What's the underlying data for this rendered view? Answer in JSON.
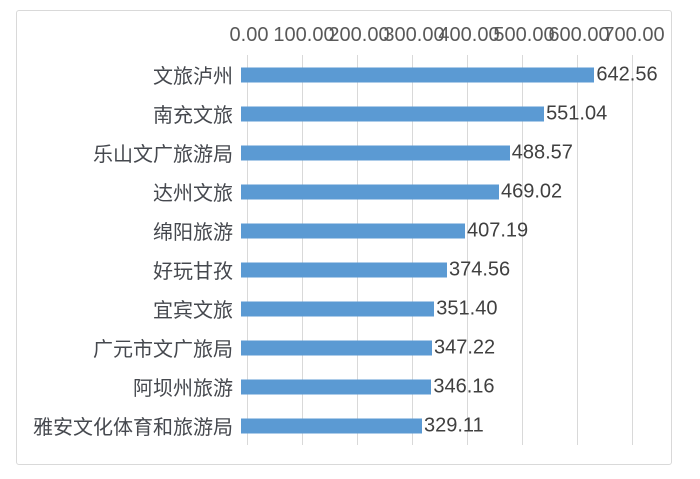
{
  "chart_data": {
    "type": "bar",
    "orientation": "horizontal",
    "title": "",
    "categories": [
      "文旅泸州",
      "南充文旅",
      "乐山文广旅游局",
      "达州文旅",
      "绵阳旅游",
      "好玩甘孜",
      "宜宾文旅",
      "广元市文广旅局",
      "阿坝州旅游",
      "雅安文化体育和旅游局"
    ],
    "values": [
      642.56,
      551.04,
      488.57,
      469.02,
      407.19,
      374.56,
      351.4,
      347.22,
      346.16,
      329.11
    ],
    "value_labels": [
      "642.56",
      "551.04",
      "488.57",
      "469.02",
      "407.19",
      "374.56",
      "351.40",
      "347.22",
      "346.16",
      "329.11"
    ],
    "axis_position": "top",
    "axis_ticks": [
      "0.00",
      "100.00",
      "200.00",
      "300.00",
      "400.00",
      "500.00",
      "600.00",
      "700.00"
    ],
    "xlim": [
      0,
      700
    ],
    "grid": true,
    "legend": false,
    "colors": {
      "bar": "#5b9ad3",
      "gridline": "#d9d9d9",
      "axis_text": "#595959",
      "category_text": "#45484e",
      "value_text": "#404040",
      "frame_border": "#d9d9d9",
      "background": "#ffffff"
    }
  }
}
